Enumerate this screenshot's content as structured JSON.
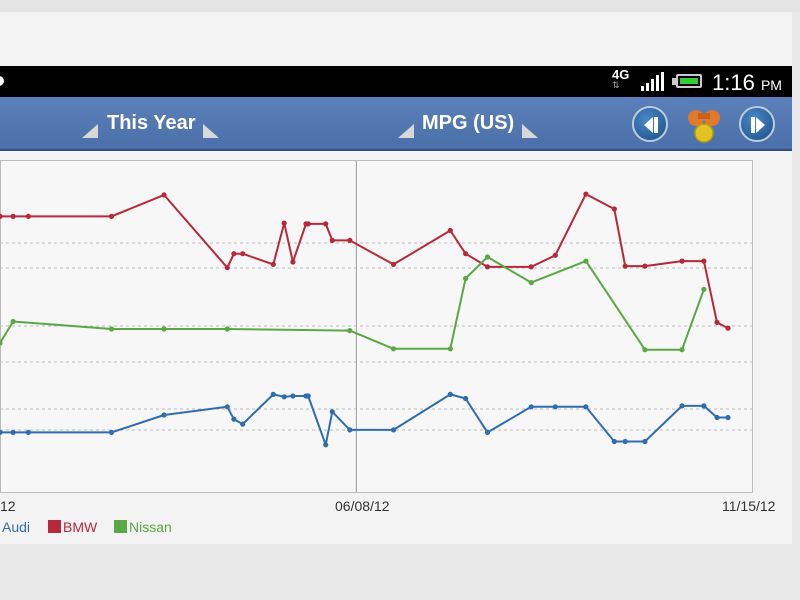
{
  "statusbar": {
    "network": "4G",
    "time": "1:16",
    "ampm": "PM"
  },
  "toolbar": {
    "period_label": "This Year",
    "metric_label": "MPG (US)",
    "prev_icon": "skip-back-icon",
    "gas_icon": "gas-pump-icon",
    "next_icon": "skip-forward-icon"
  },
  "chart_data": {
    "type": "line",
    "xlabel": "",
    "ylabel": "",
    "x_ticks": [
      "12",
      "06/08/12",
      "11/15/12"
    ],
    "series": [
      {
        "name": "Audi",
        "color": "#2f6db0",
        "x": [
          "12/28/11",
          "01/03/12",
          "01/10/12",
          "02/17/12",
          "03/12/12",
          "04/10/12",
          "04/13/12",
          "04/17/12",
          "05/01/12",
          "05/06/12",
          "05/10/12",
          "05/16/12",
          "05/17/12",
          "05/25/12",
          "05/28/12",
          "06/05/12",
          "06/25/12",
          "07/21/12",
          "07/28/12",
          "08/07/12",
          "08/27/12",
          "09/07/12",
          "09/21/12",
          "10/04/12",
          "10/09/12",
          "10/18/12",
          "11/04/12",
          "11/14/12",
          "11/20/12",
          "11/25/12"
        ],
        "y": [
          20.2,
          20.2,
          20.2,
          20.2,
          22.3,
          23.3,
          21.8,
          21.2,
          24.8,
          24.5,
          24.6,
          24.6,
          24.6,
          18.7,
          22.7,
          20.5,
          20.5,
          24.8,
          24.3,
          20.2,
          23.3,
          23.3,
          23.3,
          19.1,
          19.1,
          19.1,
          23.4,
          23.4,
          22.0,
          22.0
        ]
      },
      {
        "name": "BMW",
        "color": "#b7283a",
        "x": [
          "12/28/11",
          "01/03/12",
          "01/10/12",
          "02/17/12",
          "03/12/12",
          "04/10/12",
          "04/13/12",
          "04/17/12",
          "05/01/12",
          "05/06/12",
          "05/10/12",
          "05/16/12",
          "05/17/12",
          "05/25/12",
          "05/28/12",
          "06/05/12",
          "06/25/12",
          "07/21/12",
          "07/28/12",
          "08/07/12",
          "08/27/12",
          "09/07/12",
          "09/21/12",
          "10/04/12",
          "10/09/12",
          "10/18/12",
          "11/04/12",
          "11/14/12",
          "11/20/12",
          "11/25/12"
        ],
        "y": [
          46.3,
          46.3,
          46.3,
          46.3,
          48.9,
          40.1,
          41.8,
          41.8,
          40.5,
          45.5,
          40.8,
          45.4,
          45.4,
          45.4,
          43.4,
          43.4,
          40.5,
          44.6,
          41.8,
          40.2,
          40.2,
          41.6,
          49.0,
          47.2,
          40.3,
          40.3,
          40.9,
          40.9,
          33.5,
          32.8
        ]
      },
      {
        "name": "Nissan",
        "color": "#5aa845",
        "x": [
          "12/28/11",
          "01/03/12",
          "02/17/12",
          "03/12/12",
          "04/10/12",
          "06/05/12",
          "06/25/12",
          "07/21/12",
          "07/28/12",
          "08/07/12",
          "08/27/12",
          "09/21/12",
          "10/18/12",
          "11/04/12",
          "11/14/12"
        ],
        "y": [
          31.0,
          33.6,
          32.7,
          32.7,
          32.7,
          32.5,
          30.3,
          30.3,
          38.8,
          41.4,
          38.3,
          40.9,
          30.2,
          30.2,
          37.5
        ]
      }
    ]
  }
}
